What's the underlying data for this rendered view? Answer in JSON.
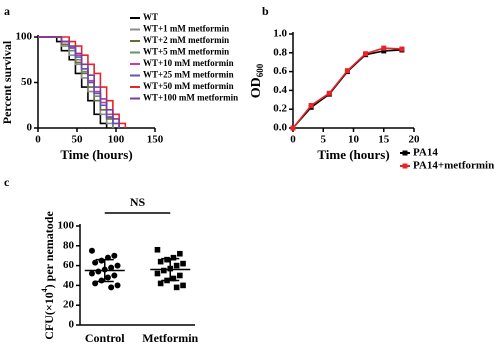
{
  "chart_data": [
    {
      "type": "line",
      "step": true,
      "panel_label": "a",
      "x_label": "Time (hours)",
      "y_label": "Percent survival",
      "x": [
        0,
        24,
        30,
        40,
        48,
        56,
        64,
        72,
        80,
        88,
        96,
        104,
        112,
        120
      ],
      "xlim": [
        0,
        150
      ],
      "xticks": [
        0,
        50,
        100,
        150
      ],
      "ylim": [
        0,
        100
      ],
      "yticks": [
        0,
        50,
        100
      ],
      "series": [
        {
          "name": "WT",
          "color": "#000000",
          "values": [
            100,
            95,
            85,
            75,
            60,
            45,
            30,
            15,
            5,
            0,
            null,
            null,
            null,
            null
          ]
        },
        {
          "name": "WT+1 mM metformin",
          "color": "#8c8c8c",
          "values": [
            100,
            100,
            90,
            80,
            70,
            55,
            40,
            30,
            15,
            5,
            0,
            null,
            null,
            null
          ]
        },
        {
          "name": "WT+2 mM metformin",
          "color": "#6b6b3a",
          "values": [
            100,
            100,
            92,
            85,
            72,
            60,
            45,
            30,
            20,
            10,
            0,
            null,
            null,
            null
          ]
        },
        {
          "name": "WT+5 mM metformin",
          "color": "#6e8c6e",
          "values": [
            100,
            100,
            95,
            85,
            75,
            62,
            50,
            35,
            25,
            12,
            0,
            null,
            null,
            null
          ]
        },
        {
          "name": "WT+10 mM metformin",
          "color": "#c040a0",
          "values": [
            100,
            100,
            95,
            88,
            80,
            65,
            52,
            40,
            28,
            15,
            5,
            0,
            null,
            null
          ]
        },
        {
          "name": "WT+25 mM metformin",
          "color": "#5a5ab4",
          "values": [
            100,
            100,
            95,
            88,
            78,
            65,
            50,
            38,
            25,
            12,
            5,
            0,
            null,
            null
          ]
        },
        {
          "name": "WT+50 mM metformin",
          "color": "#e8232a",
          "values": [
            100,
            100,
            100,
            95,
            90,
            80,
            70,
            60,
            45,
            30,
            15,
            5,
            0,
            null
          ]
        },
        {
          "name": "WT+100 mM metformin",
          "color": "#7a3d9a",
          "values": [
            100,
            100,
            95,
            90,
            82,
            70,
            58,
            45,
            32,
            20,
            10,
            0,
            null,
            null
          ]
        }
      ]
    },
    {
      "type": "line",
      "step": false,
      "panel_label": "b",
      "x_label": "Time (hours)",
      "y_label": "OD",
      "y_label_sub": "600",
      "x": [
        0,
        3,
        6,
        9,
        12,
        15,
        18
      ],
      "xlim": [
        0,
        20
      ],
      "xticks": [
        0,
        5,
        10,
        15,
        20
      ],
      "ylim": [
        0,
        1
      ],
      "yticks": [
        {
          "value": 0,
          "label": "0.0"
        },
        0.2,
        0.4,
        0.6,
        0.8,
        {
          "value": 1,
          "label": "1.0"
        }
      ],
      "series": [
        {
          "name": "PA14",
          "color": "#000000",
          "values": [
            0.0,
            0.22,
            0.36,
            0.6,
            0.78,
            0.82,
            0.83
          ]
        },
        {
          "name": "PA14+metformin",
          "color": "#e8232a",
          "values": [
            0.0,
            0.24,
            0.37,
            0.61,
            0.79,
            0.85,
            0.84
          ]
        }
      ]
    },
    {
      "type": "strip",
      "panel_label": "c",
      "y_label": "CFU(×10",
      "y_label_sup": "4",
      "y_label_end": ") per nematode",
      "annotation": "NS",
      "categories": [
        "Control",
        "Metformin"
      ],
      "markers": [
        "circle",
        "square"
      ],
      "ylim": [
        0,
        100
      ],
      "yticks": [
        0,
        20,
        40,
        60,
        80,
        100
      ],
      "series": [
        {
          "values": [
            75,
            70,
            68,
            65,
            63,
            60,
            58,
            56,
            54,
            52,
            50,
            48,
            45,
            42,
            40,
            38
          ]
        },
        {
          "values": [
            76,
            72,
            68,
            66,
            64,
            62,
            60,
            57,
            55,
            52,
            50,
            47,
            45,
            42,
            40,
            38
          ]
        }
      ],
      "means": [
        55,
        56
      ],
      "sds": [
        11,
        11
      ]
    }
  ]
}
